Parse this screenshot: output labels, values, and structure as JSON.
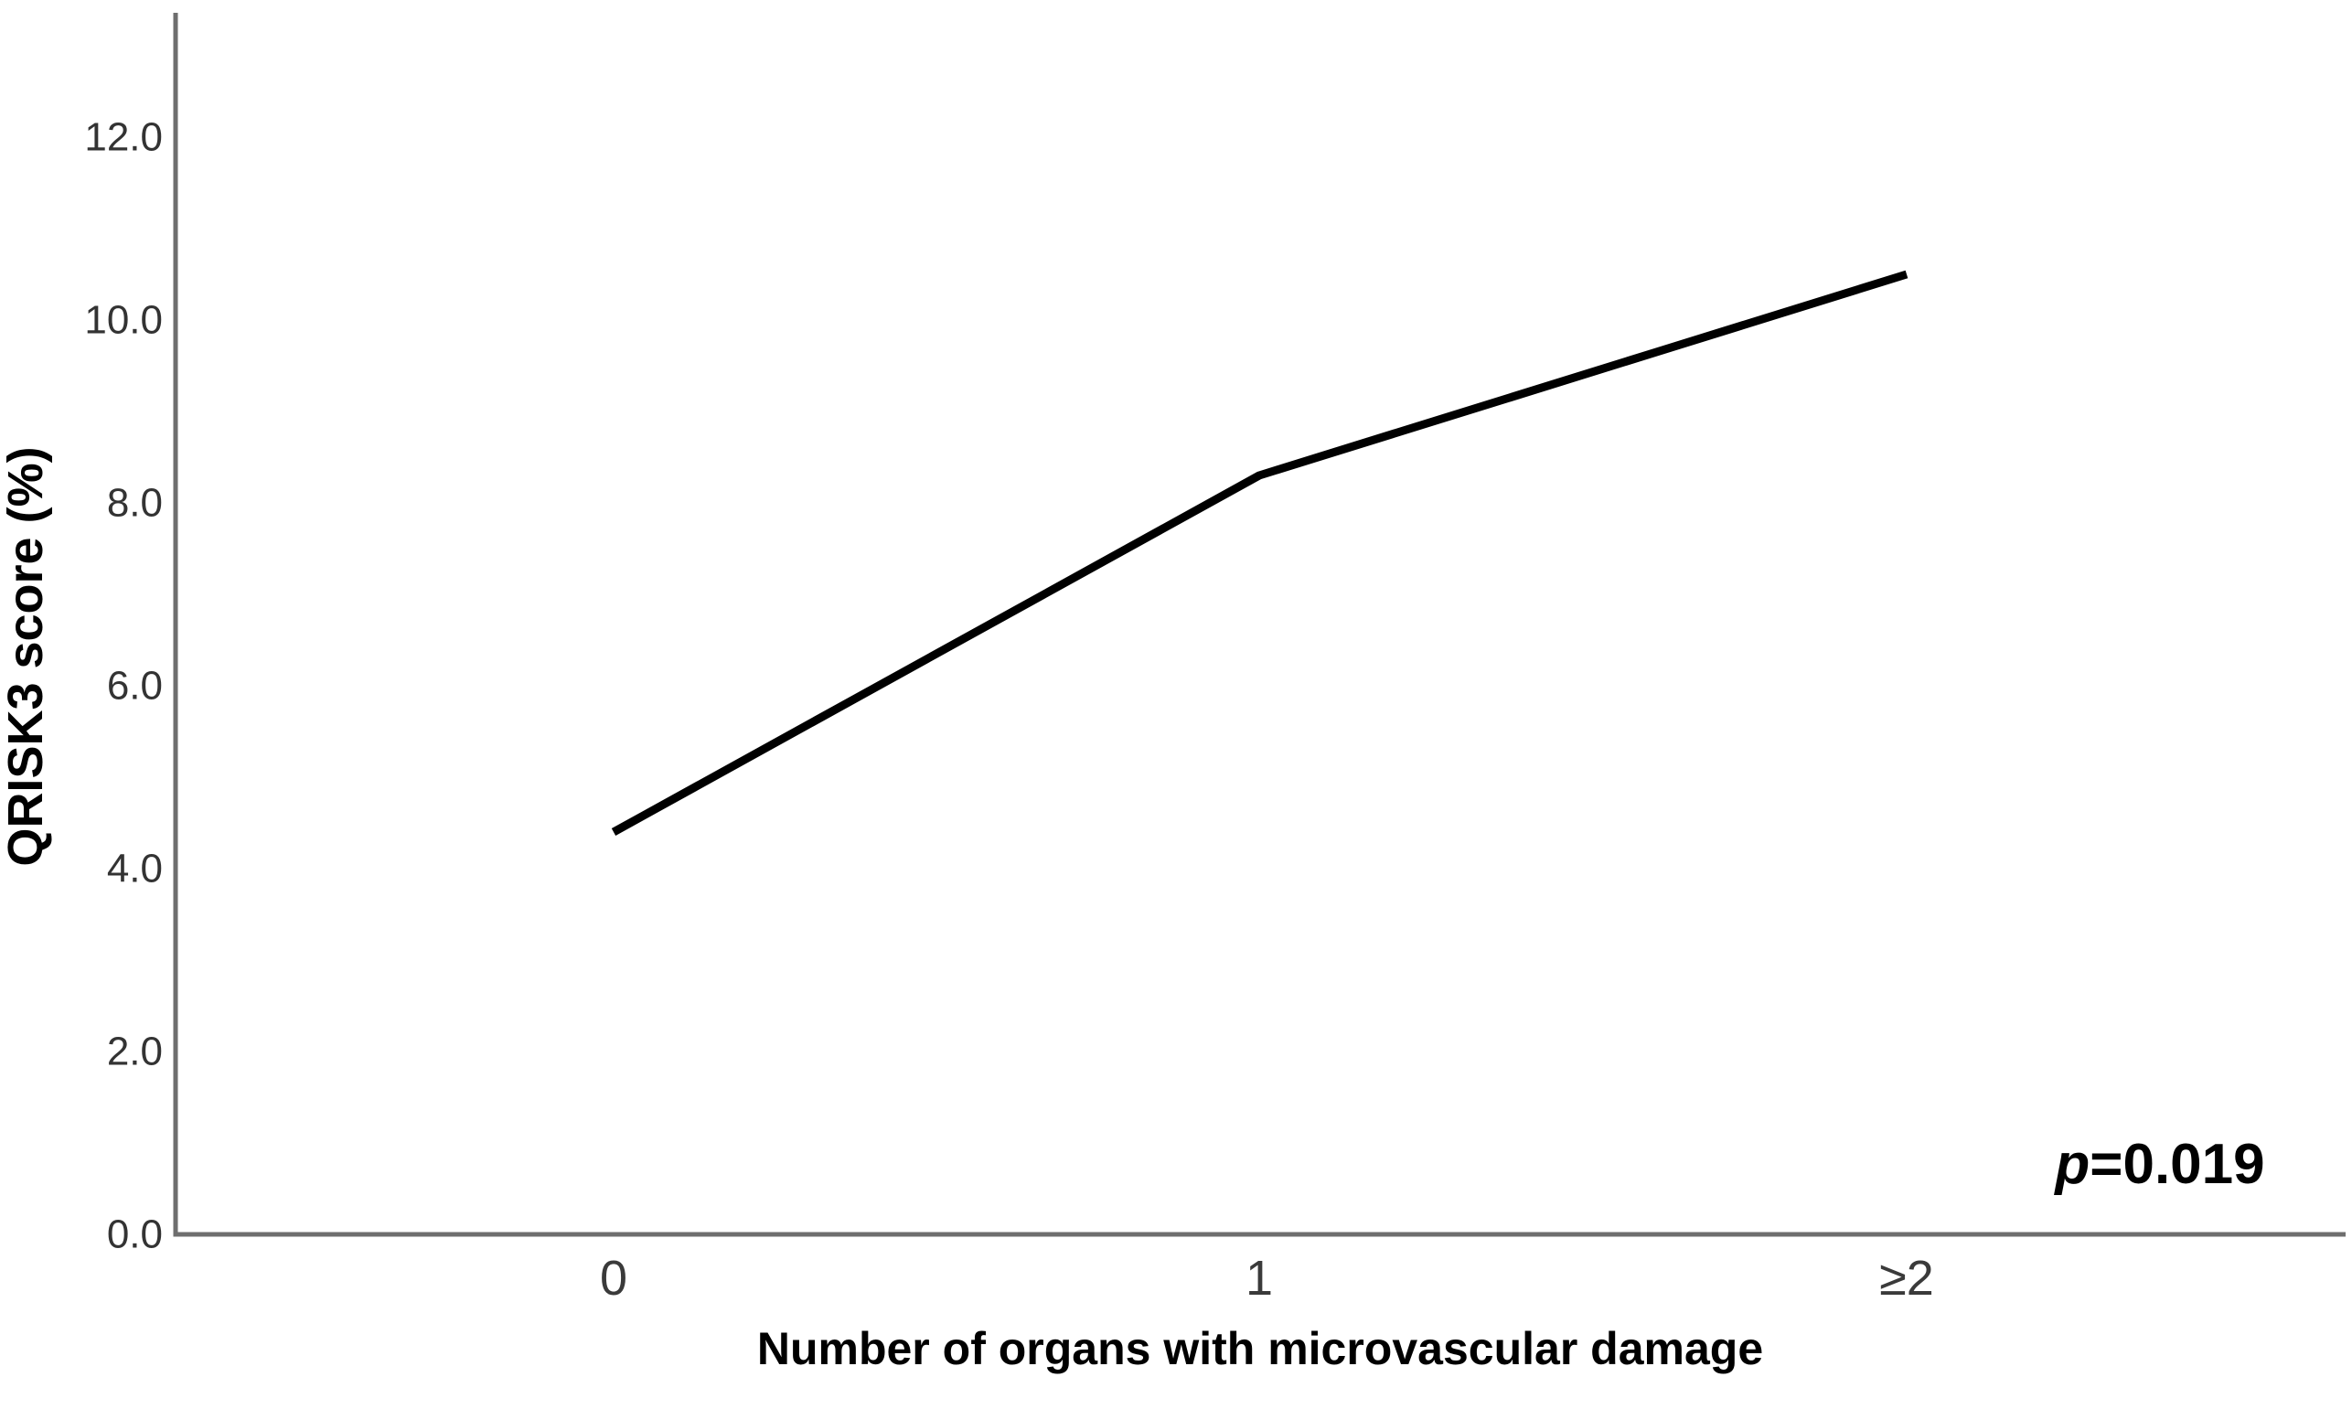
{
  "figure": {
    "background_color": "#ffffff",
    "annotation": {
      "italic_part": "p",
      "plain_part": "=0.019",
      "full_text": "p=0.019"
    }
  },
  "chart_data": {
    "type": "line",
    "categories": [
      "0",
      "1",
      "≥2"
    ],
    "values": [
      4.4,
      8.3,
      10.5
    ],
    "series": [
      {
        "name": "QRISK3 score (%)",
        "values": [
          4.4,
          8.3,
          10.5
        ]
      }
    ],
    "title": "",
    "xlabel": "Number of organs with microvascular damage",
    "ylabel": "QRISK3 score (%)",
    "ylim": [
      0,
      13.3
    ],
    "yticks": [
      0,
      2,
      4,
      6,
      8,
      10,
      12
    ],
    "ytick_labels": [
      "0.0",
      "2.0",
      "4.0",
      "6.0",
      "8.0",
      "10.0",
      "12.0"
    ],
    "grid": false,
    "legend": "none",
    "markers": false,
    "annotation": "p=0.019",
    "line_color": "#000000",
    "line_width": 9,
    "axis_color": "#6e6e6e",
    "tick_label_color": "#333333"
  }
}
